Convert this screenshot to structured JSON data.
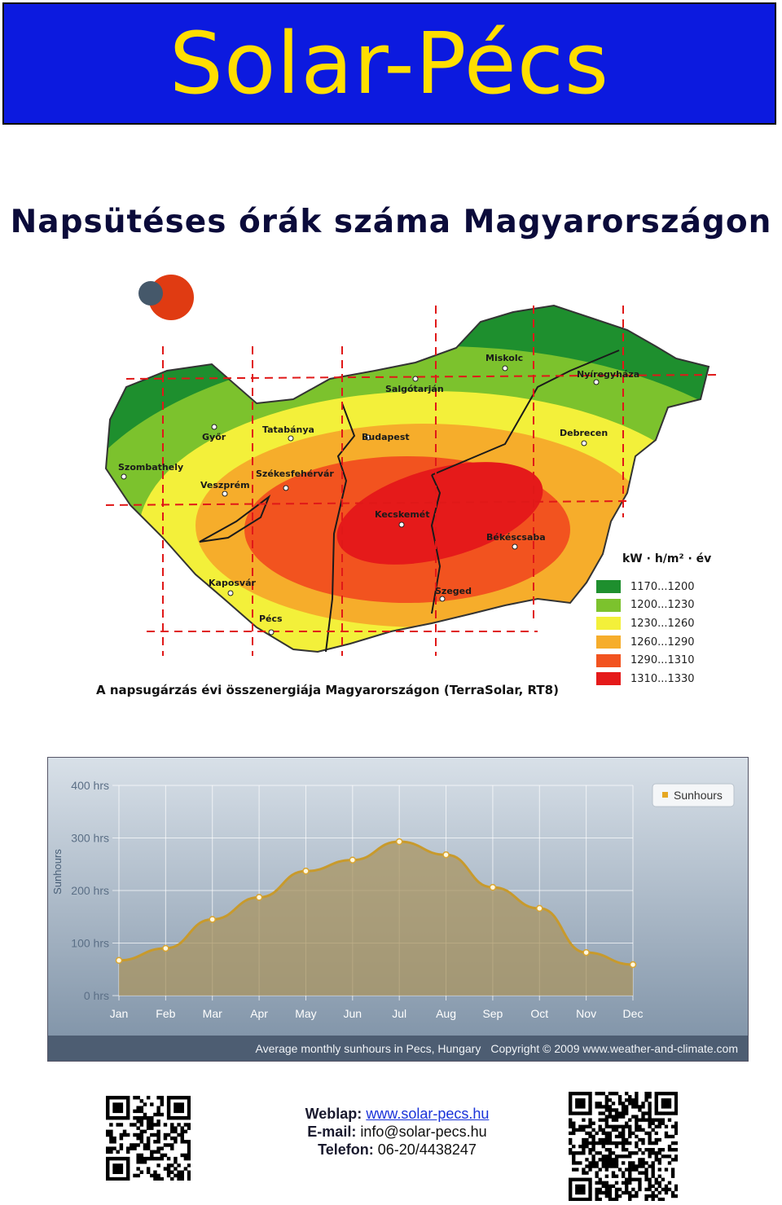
{
  "banner": {
    "title": "Solar-Pécs"
  },
  "headline": "Napsütéses órák száma Magyarországon",
  "map": {
    "caption": "A napsugárzás évi összenergiája Magyarországon (TerraSolar, RT8)",
    "legend_title": "kW · h/m² · év",
    "legend": [
      {
        "label": "1170...1200",
        "color": "#1e8f2e"
      },
      {
        "label": "1200...1230",
        "color": "#7cc22d"
      },
      {
        "label": "1230...1260",
        "color": "#f3f03a"
      },
      {
        "label": "1260...1290",
        "color": "#f6ad2b"
      },
      {
        "label": "1290...1310",
        "color": "#f2531f"
      },
      {
        "label": "1310...1330",
        "color": "#e51a1a"
      }
    ],
    "cities": [
      "Miskolc",
      "Nyíregyháza",
      "Salgótarján",
      "Győr",
      "Tatabánya",
      "Budapest",
      "Debrecen",
      "Szombathely",
      "Székesfehérvár",
      "Veszprém",
      "Kecskemét",
      "Békéscsaba",
      "Kaposvár",
      "Szeged",
      "Pécs"
    ]
  },
  "chart_data": {
    "type": "line",
    "categories": [
      "Jan",
      "Feb",
      "Mar",
      "Apr",
      "May",
      "Jun",
      "Jul",
      "Aug",
      "Sep",
      "Oct",
      "Nov",
      "Dec"
    ],
    "series": [
      {
        "name": "Sunhours",
        "values": [
          67,
          90,
          145,
          187,
          237,
          258,
          293,
          268,
          206,
          166,
          82,
          59
        ]
      }
    ],
    "ylabel": "Sunhours",
    "yticks": [
      "0 hrs",
      "100 hrs",
      "200 hrs",
      "300 hrs",
      "400 hrs"
    ],
    "ylim": [
      0,
      400
    ],
    "legend_position": "top-right",
    "grid": true,
    "footer_title": "Average monthly sunhours in Pecs, Hungary",
    "footer_copyright": "Copyright © 2009 www.weather-and-climate.com",
    "colors": {
      "line": "#c89a2c",
      "fill": "#a99460",
      "background_top": "#d8e0e8",
      "background_bottom": "#8396aa"
    }
  },
  "contact": {
    "web_label": "Weblap:",
    "web_value": "www.solar-pecs.hu",
    "email_label": "E-mail:",
    "email_value": "info@solar-pecs.hu",
    "phone_label": "Telefon:",
    "phone_value": "06-20/4438247"
  }
}
